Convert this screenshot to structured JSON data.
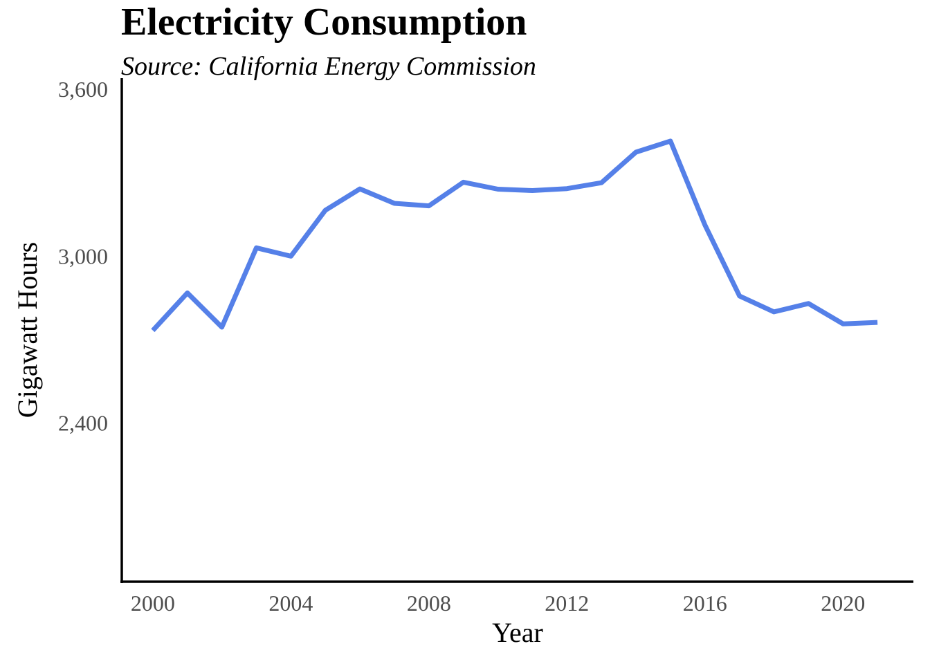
{
  "chart_data": {
    "type": "line",
    "title": "Electricity Consumption",
    "subtitle": "Source: California Energy Commission",
    "xlabel": "Year",
    "ylabel": "Gigawatt Hours",
    "xlim": [
      1999.1,
      2022
    ],
    "ylim": [
      1830,
      3640
    ],
    "x_ticks": [
      2000,
      2004,
      2008,
      2012,
      2016,
      2020
    ],
    "x_tick_labels": [
      "2000",
      "2004",
      "2008",
      "2012",
      "2016",
      "2020"
    ],
    "y_ticks": [
      2400,
      3000,
      3600
    ],
    "y_tick_labels": [
      "2,400",
      "3,000",
      "3,600"
    ],
    "grid": false,
    "legend": "none",
    "series": [
      {
        "color": "#5580e8",
        "x": [
          2000,
          2001,
          2002,
          2003,
          2004,
          2005,
          2006,
          2007,
          2008,
          2009,
          2010,
          2011,
          2012,
          2013,
          2014,
          2015,
          2016,
          2017,
          2018,
          2019,
          2020,
          2021
        ],
        "y": [
          2733,
          2868,
          2745,
          3030,
          3000,
          3165,
          3242,
          3190,
          3181,
          3266,
          3241,
          3236,
          3243,
          3264,
          3374,
          3414,
          3112,
          2857,
          2800,
          2830,
          2757,
          2762
        ]
      }
    ]
  }
}
